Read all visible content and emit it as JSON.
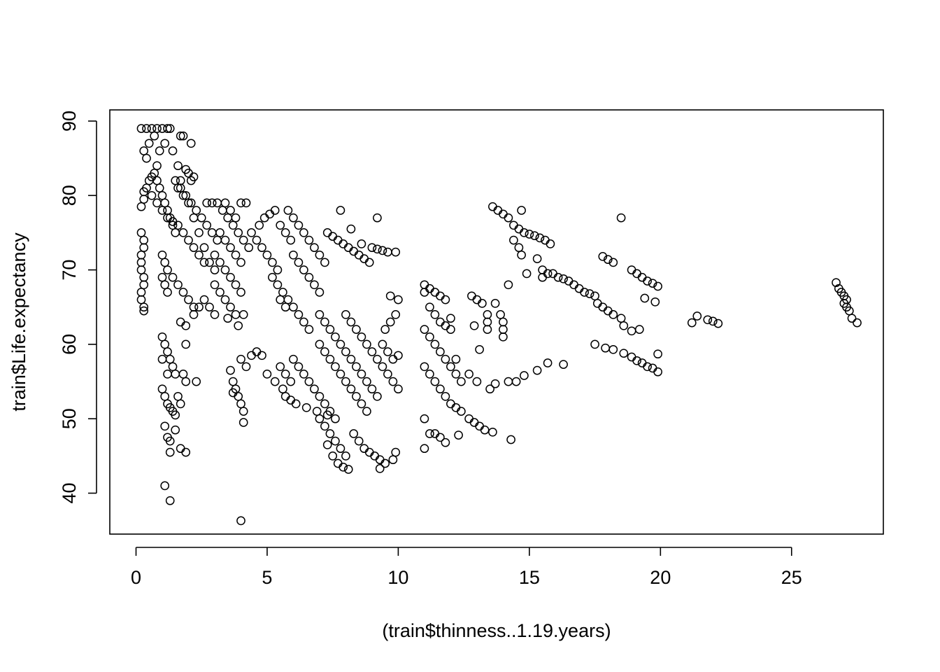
{
  "chart_data": {
    "type": "scatter",
    "xlabel": "(train$thinness..1.19.years)",
    "ylabel": "train$Life.expectancy",
    "xlim": [
      -1,
      28.5
    ],
    "ylim": [
      34.5,
      91.5
    ],
    "x_ticks": [
      0,
      5,
      10,
      15,
      20,
      25
    ],
    "x_tick_labels": [
      "0",
      "5",
      "10",
      "15",
      "20",
      "25"
    ],
    "y_ticks": [
      40,
      50,
      60,
      70,
      80,
      90
    ],
    "y_tick_labels": [
      "40",
      "50",
      "60",
      "70",
      "80",
      "90"
    ],
    "marker": "open-circle",
    "marker_color": "#000000",
    "grid": false,
    "legend": "none",
    "points": [
      [
        0.2,
        89
      ],
      [
        0.4,
        89
      ],
      [
        0.6,
        89
      ],
      [
        0.8,
        89
      ],
      [
        1.0,
        89
      ],
      [
        1.2,
        89
      ],
      [
        1.3,
        89
      ],
      [
        0.3,
        86
      ],
      [
        0.5,
        87
      ],
      [
        0.7,
        88
      ],
      [
        0.9,
        86
      ],
      [
        1.1,
        87
      ],
      [
        1.4,
        86
      ],
      [
        1.7,
        88
      ],
      [
        1.8,
        88
      ],
      [
        2.1,
        87
      ],
      [
        1.6,
        84
      ],
      [
        0.8,
        84
      ],
      [
        0.4,
        85
      ],
      [
        0.2,
        78.5
      ],
      [
        0.3,
        79.5
      ],
      [
        0.3,
        80.5
      ],
      [
        0.4,
        81
      ],
      [
        0.5,
        82
      ],
      [
        0.6,
        82.5
      ],
      [
        0.7,
        83
      ],
      [
        0.8,
        82
      ],
      [
        0.9,
        81
      ],
      [
        1.0,
        80
      ],
      [
        1.1,
        79
      ],
      [
        1.2,
        78
      ],
      [
        1.3,
        77
      ],
      [
        1.4,
        76
      ],
      [
        1.5,
        75
      ],
      [
        0.6,
        80
      ],
      [
        0.8,
        79
      ],
      [
        1.0,
        78
      ],
      [
        1.2,
        77
      ],
      [
        1.4,
        76.5
      ],
      [
        1.6,
        76
      ],
      [
        1.8,
        75
      ],
      [
        2.0,
        74
      ],
      [
        2.2,
        73
      ],
      [
        2.4,
        72
      ],
      [
        2.6,
        71
      ],
      [
        1.5,
        82
      ],
      [
        1.7,
        81
      ],
      [
        1.9,
        80
      ],
      [
        2.1,
        79
      ],
      [
        2.3,
        78
      ],
      [
        2.5,
        77
      ],
      [
        2.7,
        76
      ],
      [
        2.9,
        75
      ],
      [
        3.1,
        74
      ],
      [
        2.0,
        83
      ],
      [
        2.2,
        82.5
      ],
      [
        2.1,
        82
      ],
      [
        1.9,
        83.5
      ],
      [
        1.7,
        82
      ],
      [
        1.6,
        81
      ],
      [
        1.8,
        80
      ],
      [
        2.0,
        79
      ],
      [
        2.2,
        77
      ],
      [
        2.4,
        75
      ],
      [
        2.6,
        73
      ],
      [
        2.8,
        71
      ],
      [
        3.0,
        70
      ],
      [
        2.7,
        79
      ],
      [
        2.9,
        79
      ],
      [
        3.1,
        79
      ],
      [
        3.4,
        79
      ],
      [
        3.6,
        78
      ],
      [
        3.8,
        77
      ],
      [
        4.0,
        79
      ],
      [
        4.2,
        79
      ],
      [
        3.3,
        78
      ],
      [
        3.5,
        77
      ],
      [
        3.7,
        76
      ],
      [
        3.9,
        75
      ],
      [
        4.1,
        74
      ],
      [
        4.3,
        73
      ],
      [
        3.2,
        75
      ],
      [
        3.4,
        74
      ],
      [
        3.6,
        73
      ],
      [
        3.8,
        72
      ],
      [
        4.0,
        71
      ],
      [
        3.0,
        72
      ],
      [
        3.2,
        71
      ],
      [
        3.4,
        70
      ],
      [
        3.6,
        69
      ],
      [
        3.8,
        68
      ],
      [
        4.0,
        67
      ],
      [
        3.0,
        68
      ],
      [
        3.2,
        67
      ],
      [
        3.4,
        66
      ],
      [
        3.6,
        65
      ],
      [
        3.8,
        64
      ],
      [
        2.6,
        66
      ],
      [
        2.8,
        65
      ],
      [
        3.0,
        64
      ],
      [
        2.4,
        65
      ],
      [
        2.2,
        64
      ],
      [
        3.5,
        63.5
      ],
      [
        3.9,
        62.5
      ],
      [
        4.1,
        64
      ],
      [
        0.2,
        72
      ],
      [
        0.2,
        71
      ],
      [
        0.2,
        70
      ],
      [
        0.3,
        73
      ],
      [
        0.3,
        74
      ],
      [
        0.2,
        75
      ],
      [
        0.2,
        66
      ],
      [
        0.3,
        65
      ],
      [
        0.3,
        64.5
      ],
      [
        0.2,
        67
      ],
      [
        0.3,
        68
      ],
      [
        0.3,
        69
      ],
      [
        1.0,
        72
      ],
      [
        1.1,
        71
      ],
      [
        1.2,
        70
      ],
      [
        1.0,
        69
      ],
      [
        1.1,
        68
      ],
      [
        1.2,
        67
      ],
      [
        1.4,
        69
      ],
      [
        1.6,
        68
      ],
      [
        1.8,
        67
      ],
      [
        2.0,
        66
      ],
      [
        2.2,
        65
      ],
      [
        4.4,
        75
      ],
      [
        4.6,
        74
      ],
      [
        4.8,
        73
      ],
      [
        5.0,
        72
      ],
      [
        5.2,
        71
      ],
      [
        5.4,
        70
      ],
      [
        4.7,
        76
      ],
      [
        4.9,
        77
      ],
      [
        5.1,
        77.5
      ],
      [
        5.3,
        78
      ],
      [
        5.5,
        76
      ],
      [
        5.7,
        75
      ],
      [
        5.9,
        74
      ],
      [
        5.8,
        78
      ],
      [
        6.0,
        77
      ],
      [
        6.2,
        76
      ],
      [
        6.4,
        75
      ],
      [
        6.6,
        74
      ],
      [
        6.8,
        73
      ],
      [
        7.0,
        72
      ],
      [
        7.2,
        71
      ],
      [
        6.0,
        72
      ],
      [
        6.2,
        71
      ],
      [
        6.4,
        70
      ],
      [
        6.6,
        69
      ],
      [
        6.8,
        68
      ],
      [
        7.0,
        67
      ],
      [
        5.2,
        69
      ],
      [
        5.4,
        68
      ],
      [
        5.6,
        67
      ],
      [
        5.8,
        66
      ],
      [
        6.0,
        65
      ],
      [
        6.2,
        64
      ],
      [
        6.4,
        63
      ],
      [
        6.6,
        62
      ],
      [
        5.5,
        66
      ],
      [
        5.7,
        65
      ],
      [
        7.3,
        75
      ],
      [
        7.5,
        74.5
      ],
      [
        7.7,
        74
      ],
      [
        7.9,
        73.5
      ],
      [
        8.1,
        73
      ],
      [
        8.3,
        72.5
      ],
      [
        8.5,
        72
      ],
      [
        8.7,
        71.5
      ],
      [
        8.9,
        71
      ],
      [
        7.8,
        78
      ],
      [
        8.2,
        75.5
      ],
      [
        8.6,
        73.5
      ],
      [
        9.0,
        73
      ],
      [
        9.2,
        72.8
      ],
      [
        9.4,
        72.6
      ],
      [
        9.6,
        72.4
      ],
      [
        9.9,
        72.4
      ],
      [
        9.2,
        77
      ],
      [
        7.0,
        64
      ],
      [
        7.2,
        63
      ],
      [
        7.4,
        62
      ],
      [
        7.6,
        61
      ],
      [
        7.8,
        60
      ],
      [
        8.0,
        59
      ],
      [
        8.2,
        58
      ],
      [
        8.4,
        57
      ],
      [
        8.6,
        56
      ],
      [
        8.8,
        55
      ],
      [
        9.0,
        54
      ],
      [
        9.2,
        53
      ],
      [
        7.0,
        60
      ],
      [
        7.2,
        59
      ],
      [
        7.4,
        58
      ],
      [
        7.6,
        57
      ],
      [
        7.8,
        56
      ],
      [
        8.0,
        55
      ],
      [
        8.2,
        54
      ],
      [
        8.4,
        53
      ],
      [
        8.6,
        52
      ],
      [
        8.8,
        51
      ],
      [
        8.0,
        64
      ],
      [
        8.2,
        63
      ],
      [
        8.4,
        62
      ],
      [
        8.6,
        61
      ],
      [
        8.8,
        60
      ],
      [
        9.0,
        59
      ],
      [
        9.2,
        58
      ],
      [
        9.4,
        57
      ],
      [
        9.6,
        56
      ],
      [
        9.8,
        55
      ],
      [
        10.0,
        54
      ],
      [
        6.0,
        58
      ],
      [
        6.2,
        57
      ],
      [
        6.4,
        56
      ],
      [
        6.6,
        55
      ],
      [
        6.8,
        54
      ],
      [
        7.0,
        53
      ],
      [
        7.2,
        52
      ],
      [
        7.4,
        51
      ],
      [
        5.5,
        57
      ],
      [
        5.7,
        56
      ],
      [
        5.9,
        55
      ],
      [
        5.7,
        53
      ],
      [
        5.9,
        52.5
      ],
      [
        6.1,
        52
      ],
      [
        6.5,
        51.5
      ],
      [
        6.9,
        51
      ],
      [
        7.3,
        50.5
      ],
      [
        7.6,
        50
      ],
      [
        7.0,
        50
      ],
      [
        7.2,
        49
      ],
      [
        7.4,
        48
      ],
      [
        7.6,
        47
      ],
      [
        7.8,
        46
      ],
      [
        8.0,
        45
      ],
      [
        7.3,
        46.5
      ],
      [
        7.5,
        45
      ],
      [
        7.7,
        44
      ],
      [
        7.9,
        43.5
      ],
      [
        8.1,
        43.2
      ],
      [
        8.3,
        48
      ],
      [
        8.5,
        47
      ],
      [
        8.7,
        46
      ],
      [
        8.9,
        45.5
      ],
      [
        9.1,
        45
      ],
      [
        9.3,
        44.5
      ],
      [
        9.5,
        44
      ],
      [
        9.3,
        43.3
      ],
      [
        9.8,
        44.5
      ],
      [
        9.9,
        45.5
      ],
      [
        9.4,
        60
      ],
      [
        9.6,
        59
      ],
      [
        9.8,
        58
      ],
      [
        10.0,
        58.5
      ],
      [
        9.5,
        62
      ],
      [
        9.7,
        63
      ],
      [
        9.9,
        64
      ],
      [
        10.0,
        66
      ],
      [
        9.7,
        66.5
      ],
      [
        4.0,
        58
      ],
      [
        4.2,
        57
      ],
      [
        4.4,
        58.5
      ],
      [
        4.6,
        59
      ],
      [
        4.8,
        58.5
      ],
      [
        5.0,
        56
      ],
      [
        5.3,
        55
      ],
      [
        5.6,
        54
      ],
      [
        3.6,
        56.5
      ],
      [
        3.7,
        55
      ],
      [
        3.8,
        54
      ],
      [
        3.9,
        53
      ],
      [
        4.0,
        52
      ],
      [
        4.1,
        51
      ],
      [
        4.1,
        49.5
      ],
      [
        3.7,
        53.5
      ],
      [
        1.0,
        61
      ],
      [
        1.1,
        60
      ],
      [
        1.2,
        59
      ],
      [
        1.3,
        58
      ],
      [
        1.4,
        57
      ],
      [
        1.5,
        56
      ],
      [
        1.0,
        58
      ],
      [
        1.2,
        56
      ],
      [
        1.7,
        63
      ],
      [
        1.9,
        62.5
      ],
      [
        1.9,
        60
      ],
      [
        1.0,
        54
      ],
      [
        1.1,
        53
      ],
      [
        1.2,
        52
      ],
      [
        1.3,
        51.5
      ],
      [
        1.4,
        51
      ],
      [
        1.5,
        50.5
      ],
      [
        1.1,
        49
      ],
      [
        1.2,
        47.5
      ],
      [
        1.3,
        47
      ],
      [
        1.5,
        48.5
      ],
      [
        1.7,
        46
      ],
      [
        1.9,
        45.5
      ],
      [
        1.3,
        45.5
      ],
      [
        1.6,
        53
      ],
      [
        1.7,
        52
      ],
      [
        1.8,
        56
      ],
      [
        1.9,
        55
      ],
      [
        2.3,
        55
      ],
      [
        1.1,
        41
      ],
      [
        1.3,
        39
      ],
      [
        4.0,
        36.3
      ],
      [
        11.0,
        68
      ],
      [
        11.2,
        67.5
      ],
      [
        11.4,
        67
      ],
      [
        11.6,
        66.5
      ],
      [
        11.8,
        66
      ],
      [
        11.0,
        67
      ],
      [
        11.2,
        65
      ],
      [
        11.4,
        64
      ],
      [
        11.6,
        63
      ],
      [
        11.8,
        62.5
      ],
      [
        11.0,
        62
      ],
      [
        11.2,
        61
      ],
      [
        11.4,
        60
      ],
      [
        11.6,
        59
      ],
      [
        11.8,
        58
      ],
      [
        12.0,
        57
      ],
      [
        12.2,
        56
      ],
      [
        11.0,
        57
      ],
      [
        11.2,
        56
      ],
      [
        11.4,
        55
      ],
      [
        11.6,
        54
      ],
      [
        11.8,
        53
      ],
      [
        12.0,
        52
      ],
      [
        12.2,
        51.5
      ],
      [
        12.4,
        51
      ],
      [
        11.0,
        50
      ],
      [
        11.2,
        48
      ],
      [
        11.4,
        48
      ],
      [
        11.6,
        47.5
      ],
      [
        11.0,
        46
      ],
      [
        11.8,
        46.8
      ],
      [
        12.3,
        47.8
      ],
      [
        12.0,
        63.5
      ],
      [
        12.0,
        62
      ],
      [
        12.2,
        58
      ],
      [
        12.4,
        55
      ],
      [
        12.7,
        56
      ],
      [
        12.9,
        62.5
      ],
      [
        13.1,
        59.3
      ],
      [
        12.8,
        66.5
      ],
      [
        13.0,
        66
      ],
      [
        13.2,
        65.5
      ],
      [
        13.4,
        64
      ],
      [
        13.4,
        63
      ],
      [
        13.4,
        62
      ],
      [
        12.7,
        50
      ],
      [
        12.9,
        49.5
      ],
      [
        13.1,
        49
      ],
      [
        13.3,
        48.5
      ],
      [
        13.6,
        48.2
      ],
      [
        13.0,
        55
      ],
      [
        13.5,
        54
      ],
      [
        13.7,
        54.7
      ],
      [
        14.2,
        55
      ],
      [
        14.5,
        55
      ],
      [
        14.8,
        55.8
      ],
      [
        15.3,
        56.5
      ],
      [
        15.7,
        57.5
      ],
      [
        16.3,
        57.3
      ],
      [
        13.7,
        65.5
      ],
      [
        13.9,
        64
      ],
      [
        14.0,
        63
      ],
      [
        14.0,
        62
      ],
      [
        14.0,
        61
      ],
      [
        14.2,
        68
      ],
      [
        14.3,
        47.2
      ],
      [
        13.6,
        78.5
      ],
      [
        13.8,
        78
      ],
      [
        14.0,
        77.5
      ],
      [
        14.2,
        77
      ],
      [
        14.4,
        76
      ],
      [
        14.6,
        75.5
      ],
      [
        14.8,
        75
      ],
      [
        15.0,
        74.8
      ],
      [
        15.2,
        74.6
      ],
      [
        15.4,
        74.3
      ],
      [
        15.6,
        74
      ],
      [
        15.8,
        73.5
      ],
      [
        14.4,
        74
      ],
      [
        14.6,
        73
      ],
      [
        14.7,
        72
      ],
      [
        15.3,
        71.5
      ],
      [
        15.5,
        70
      ],
      [
        15.5,
        69
      ],
      [
        14.9,
        69.5
      ],
      [
        14.7,
        78
      ],
      [
        15.7,
        69.5
      ],
      [
        15.9,
        69.5
      ],
      [
        16.1,
        69
      ],
      [
        16.3,
        68.8
      ],
      [
        16.5,
        68.5
      ],
      [
        16.7,
        68
      ],
      [
        16.9,
        67.5
      ],
      [
        17.1,
        67
      ],
      [
        17.3,
        66.8
      ],
      [
        17.5,
        66.5
      ],
      [
        17.6,
        65.5
      ],
      [
        17.8,
        65
      ],
      [
        18.0,
        64.5
      ],
      [
        18.2,
        64
      ],
      [
        18.5,
        63.5
      ],
      [
        18.6,
        62.5
      ],
      [
        17.8,
        71.8
      ],
      [
        18.0,
        71.4
      ],
      [
        18.2,
        71
      ],
      [
        18.5,
        77
      ],
      [
        18.9,
        70
      ],
      [
        19.1,
        69.5
      ],
      [
        19.3,
        69
      ],
      [
        19.5,
        68.5
      ],
      [
        19.7,
        68.2
      ],
      [
        19.9,
        67.8
      ],
      [
        19.4,
        66.2
      ],
      [
        19.8,
        65.7
      ],
      [
        18.9,
        61.8
      ],
      [
        19.2,
        62
      ],
      [
        17.5,
        60
      ],
      [
        17.9,
        59.5
      ],
      [
        18.2,
        59.3
      ],
      [
        18.6,
        58.8
      ],
      [
        18.9,
        58.3
      ],
      [
        19.1,
        57.8
      ],
      [
        19.3,
        57.5
      ],
      [
        19.5,
        57
      ],
      [
        19.7,
        56.8
      ],
      [
        19.9,
        56.3
      ],
      [
        19.9,
        58.7
      ],
      [
        21.2,
        62.9
      ],
      [
        21.4,
        63.8
      ],
      [
        21.8,
        63.3
      ],
      [
        22.0,
        63.1
      ],
      [
        22.2,
        62.8
      ],
      [
        26.7,
        68.3
      ],
      [
        26.8,
        67.5
      ],
      [
        26.9,
        67
      ],
      [
        27.0,
        66.5
      ],
      [
        27.1,
        66
      ],
      [
        27.0,
        65.5
      ],
      [
        27.1,
        65
      ],
      [
        27.2,
        64.5
      ],
      [
        27.3,
        63.5
      ],
      [
        27.5,
        62.9
      ]
    ]
  }
}
